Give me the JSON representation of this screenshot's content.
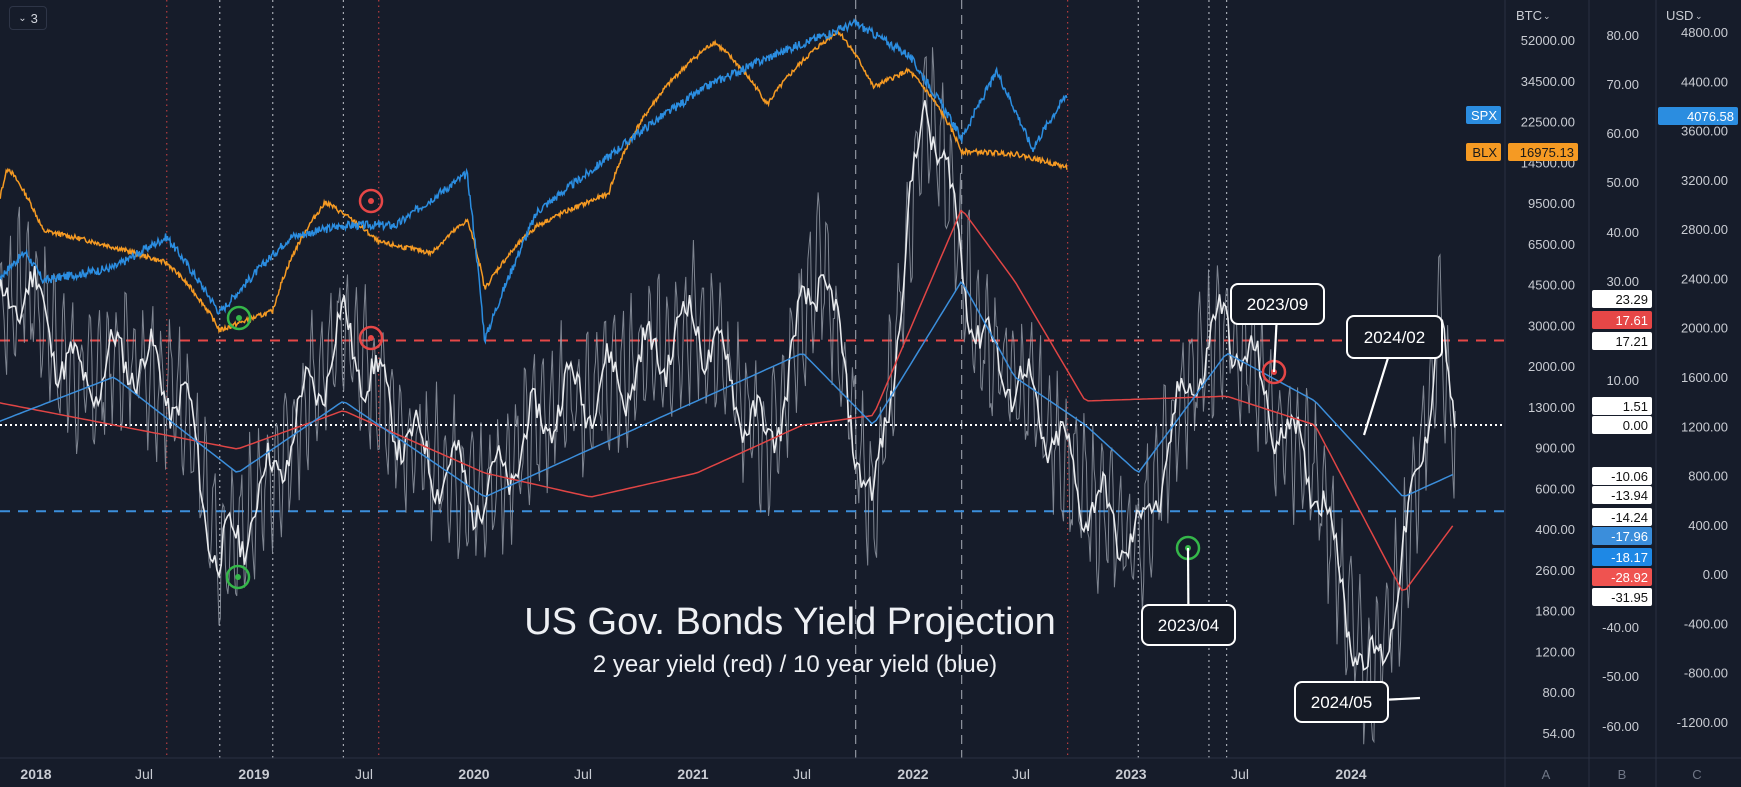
{
  "toolbar": {
    "series_count": "3"
  },
  "title": "US Gov. Bonds Yield Projection",
  "subtitle": "2 year yield (red) / 10 year yield (blue)",
  "colors": {
    "background": "#161c2a",
    "spx": "#2b8de0",
    "blx": "#f59a23",
    "oscillator": "#e8eaed",
    "oscillator_raw": "#9aa0ab",
    "red_line": "#e04545",
    "blue_line": "#3b8edb",
    "green_marker": "#35b74a",
    "red_marker": "#e64747"
  },
  "axes": {
    "btc": {
      "title": "BTC",
      "ticks": [
        "52000.00",
        "34500.00",
        "22500.00",
        "14500.00",
        "9500.00",
        "6500.00",
        "4500.00",
        "3000.00",
        "2000.00",
        "1300.00",
        "900.00",
        "600.00",
        "400.00",
        "260.00",
        "180.00",
        "120.00",
        "80.00",
        "54.00"
      ]
    },
    "pct": {
      "ticks": [
        "80.00",
        "70.00",
        "60.00",
        "50.00",
        "40.00",
        "30.00",
        "10.00",
        "0.00",
        "-40.00",
        "-50.00",
        "-60.00"
      ]
    },
    "usd": {
      "title": "USD",
      "ticks": [
        "4800.00",
        "4400.00",
        "3600.00",
        "3200.00",
        "2800.00",
        "2400.00",
        "2000.00",
        "1600.00",
        "1200.00",
        "800.00",
        "400.00",
        "0.00",
        "-400.00",
        "-800.00",
        "-1200.00"
      ]
    },
    "x_ticks": [
      "2018",
      "Jul",
      "2019",
      "Jul",
      "2020",
      "Jul",
      "2021",
      "Jul",
      "2022",
      "Jul",
      "2023",
      "Jul",
      "2024"
    ],
    "pane_labels": [
      "A",
      "B",
      "C"
    ]
  },
  "badges": {
    "spx": {
      "name": "SPX",
      "value": "4076.58"
    },
    "blx": {
      "name": "BLX",
      "value": "16975.13"
    },
    "oscillator": [
      "23.29",
      "17.61",
      "17.21",
      "1.51",
      "0.00",
      "-10.06",
      "-13.94",
      "-14.24",
      "-17.96",
      "-18.17",
      "-28.92",
      "-31.95"
    ]
  },
  "callouts": [
    "2023/09",
    "2024/02",
    "2023/04",
    "2024/05"
  ],
  "chart_data": {
    "type": "line",
    "x_range": [
      "2017-11",
      "2024-12"
    ],
    "series": [
      {
        "name": "SPX",
        "points": [
          [
            "2017-11",
            2600
          ],
          [
            "2018-01",
            2820
          ],
          [
            "2018-02",
            2640
          ],
          [
            "2018-06",
            2720
          ],
          [
            "2018-09",
            2920
          ],
          [
            "2018-12",
            2450
          ],
          [
            "2019-04",
            2920
          ],
          [
            "2019-07",
            3000
          ],
          [
            "2019-10",
            3000
          ],
          [
            "2020-02",
            3380
          ],
          [
            "2020-03",
            2300
          ],
          [
            "2020-06",
            3100
          ],
          [
            "2020-09",
            3400
          ],
          [
            "2020-12",
            3750
          ],
          [
            "2021-04",
            4180
          ],
          [
            "2021-08",
            4500
          ],
          [
            "2021-12",
            4790
          ],
          [
            "2022-03",
            4450
          ],
          [
            "2022-06",
            3670
          ],
          [
            "2022-08",
            4280
          ],
          [
            "2022-10",
            3580
          ],
          [
            "2022-12",
            4076.58
          ]
        ]
      },
      {
        "name": "BLX",
        "points": [
          [
            "2017-11",
            7000
          ],
          [
            "2017-12",
            17000
          ],
          [
            "2018-02",
            9000
          ],
          [
            "2018-05",
            8000
          ],
          [
            "2018-09",
            6500
          ],
          [
            "2018-12",
            3300
          ],
          [
            "2019-03",
            4000
          ],
          [
            "2019-06",
            12000
          ],
          [
            "2019-09",
            8000
          ],
          [
            "2019-12",
            7200
          ],
          [
            "2020-02",
            10000
          ],
          [
            "2020-03",
            5000
          ],
          [
            "2020-06",
            9500
          ],
          [
            "2020-10",
            13000
          ],
          [
            "2020-12",
            28000
          ],
          [
            "2021-04",
            60000
          ],
          [
            "2021-07",
            32000
          ],
          [
            "2021-11",
            67000
          ],
          [
            "2022-01",
            38000
          ],
          [
            "2022-03",
            45000
          ],
          [
            "2022-06",
            20000
          ],
          [
            "2022-09",
            19500
          ],
          [
            "2022-12",
            16975.13
          ]
        ]
      },
      {
        "name": "oscillator",
        "points": [
          [
            "2017-11",
            20
          ],
          [
            "2018-01",
            30
          ],
          [
            "2018-04",
            8
          ],
          [
            "2018-07",
            15
          ],
          [
            "2018-10",
            5
          ],
          [
            "2018-12",
            -30
          ],
          [
            "2019-03",
            -10
          ],
          [
            "2019-07",
            20
          ],
          [
            "2019-11",
            -5
          ],
          [
            "2020-03",
            -15
          ],
          [
            "2020-07",
            5
          ],
          [
            "2020-11",
            10
          ],
          [
            "2021-03",
            22
          ],
          [
            "2021-07",
            -5
          ],
          [
            "2021-10",
            35
          ],
          [
            "2022-01",
            -20
          ],
          [
            "2022-04",
            70
          ],
          [
            "2022-07",
            18
          ],
          [
            "2022-10",
            5
          ],
          [
            "2023-01",
            -15
          ],
          [
            "2023-04",
            -25
          ],
          [
            "2023-07",
            10
          ],
          [
            "2023-09",
            22
          ],
          [
            "2023-12",
            0
          ],
          [
            "2024-02",
            -10
          ],
          [
            "2024-05",
            -55
          ],
          [
            "2024-07",
            -30
          ],
          [
            "2024-09",
            20
          ],
          [
            "2024-10",
            -5
          ]
        ]
      },
      {
        "name": "2 year yield",
        "points": [
          [
            "2017-11",
            5
          ],
          [
            "2018-06",
            0
          ],
          [
            "2019-01",
            -5
          ],
          [
            "2019-07",
            3
          ],
          [
            "2020-03",
            -10
          ],
          [
            "2020-09",
            -15
          ],
          [
            "2021-03",
            -10
          ],
          [
            "2021-09",
            0
          ],
          [
            "2022-01",
            2
          ],
          [
            "2022-06",
            45
          ],
          [
            "2022-09",
            30
          ],
          [
            "2023-01",
            5
          ],
          [
            "2023-09",
            6
          ],
          [
            "2024-02",
            0
          ],
          [
            "2024-07",
            -35
          ],
          [
            "2024-10",
            -20
          ]
        ]
      },
      {
        "name": "10 year yield",
        "points": [
          [
            "2017-11",
            0
          ],
          [
            "2018-06",
            10
          ],
          [
            "2019-01",
            -10
          ],
          [
            "2019-07",
            5
          ],
          [
            "2020-03",
            -15
          ],
          [
            "2020-09",
            -5
          ],
          [
            "2021-03",
            5
          ],
          [
            "2021-09",
            15
          ],
          [
            "2022-01",
            0
          ],
          [
            "2022-06",
            30
          ],
          [
            "2022-09",
            10
          ],
          [
            "2023-01",
            0
          ],
          [
            "2023-04",
            -10
          ],
          [
            "2023-09",
            15
          ],
          [
            "2024-02",
            5
          ],
          [
            "2024-07",
            -15
          ],
          [
            "2024-10",
            -10
          ]
        ]
      }
    ],
    "reference_levels": {
      "upper_red": 17.61,
      "zero": 0.0,
      "lower_blue": -17.96
    },
    "markers": [
      {
        "kind": "green",
        "date": "2018-12"
      },
      {
        "kind": "green",
        "date": "2018-12"
      },
      {
        "kind": "red",
        "date": "2019-07"
      },
      {
        "kind": "red",
        "date": "2019-07"
      },
      {
        "kind": "green",
        "date": "2023-04"
      },
      {
        "kind": "red",
        "date": "2023-09"
      }
    ],
    "grid": false
  }
}
